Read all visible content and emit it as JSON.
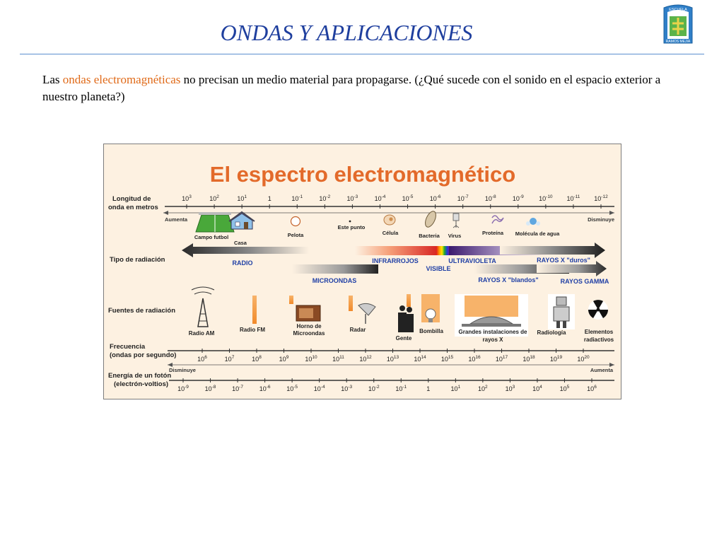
{
  "slide": {
    "title": "ONDAS Y APLICACIONES",
    "intro_before": "Las ",
    "intro_highlight": "ondas electromagnéticas",
    "intro_after": " no precisan un medio material para propagarse. (¿Qué sucede con el sonido en el espacio exterior a nuestro planeta?)",
    "highlight_color": "#e06a18",
    "title_color": "#1f3f9e",
    "logo_icon": "school-crest-icon",
    "logo_text_top": "ESCUELA",
    "logo_text_bottom": "RAMOS MEJIA"
  },
  "figure": {
    "title": "El espectro electromagnético",
    "title_color": "#e36a2a",
    "wavelength": {
      "label_line1": "Longitud de",
      "label_line2": "onda en metros",
      "left_arrow": "Aumenta",
      "right_arrow": "Disminuye",
      "ticks": [
        {
          "b": "10",
          "e": "3"
        },
        {
          "b": "10",
          "e": "2"
        },
        {
          "b": "10",
          "e": "1"
        },
        {
          "b": "1",
          "e": ""
        },
        {
          "b": "10",
          "e": "-1"
        },
        {
          "b": "10",
          "e": "-2"
        },
        {
          "b": "10",
          "e": "-3"
        },
        {
          "b": "10",
          "e": "-4"
        },
        {
          "b": "10",
          "e": "-5"
        },
        {
          "b": "10",
          "e": "-6"
        },
        {
          "b": "10",
          "e": "-7"
        },
        {
          "b": "10",
          "e": "-8"
        },
        {
          "b": "10",
          "e": "-9"
        },
        {
          "b": "10",
          "e": "-10"
        },
        {
          "b": "10",
          "e": "-11"
        },
        {
          "b": "10",
          "e": "-12"
        }
      ]
    },
    "objects": [
      "Campo futbol",
      "Casa",
      "Pelota",
      "Este punto",
      "Célula",
      "Bacteria",
      "Virus",
      "Proteína",
      "Molécula de agua"
    ],
    "radiation": {
      "label": "Tipo de radiación",
      "types": [
        "RADIO",
        "MICROONDAS",
        "INFRARROJOS",
        "VISIBLE",
        "ULTRAVIOLETA",
        "RAYOS X \"blandos\"",
        "RAYOS X \"duros\"",
        "RAYOS GAMMA"
      ]
    },
    "sources": {
      "label": "Fuentes de radiación",
      "items": [
        "Radio AM",
        "Radio FM",
        "Horno de",
        "Microondas",
        "Radar",
        "Gente",
        "Bombilla",
        "Grandes instalaciones de",
        "rayos X",
        "Radiología",
        "Elementos",
        "radiactivos"
      ]
    },
    "frequency": {
      "label_line1": "Frecuencia",
      "label_line2": "(ondas por segundo)",
      "ticks": [
        {
          "b": "10",
          "e": "6"
        },
        {
          "b": "10",
          "e": "7"
        },
        {
          "b": "10",
          "e": "8"
        },
        {
          "b": "10",
          "e": "9"
        },
        {
          "b": "10",
          "e": "10"
        },
        {
          "b": "10",
          "e": "11"
        },
        {
          "b": "10",
          "e": "12"
        },
        {
          "b": "10",
          "e": "13"
        },
        {
          "b": "10",
          "e": "14"
        },
        {
          "b": "10",
          "e": "15"
        },
        {
          "b": "10",
          "e": "16"
        },
        {
          "b": "10",
          "e": "17"
        },
        {
          "b": "10",
          "e": "18"
        },
        {
          "b": "10",
          "e": "19"
        },
        {
          "b": "10",
          "e": "20"
        }
      ]
    },
    "energy": {
      "label_line1": "Energía de un fotón",
      "label_line2": "(electrón-voltios)",
      "left_arrow": "Disminuye",
      "right_arrow": "Aumenta",
      "ticks": [
        {
          "b": "10",
          "e": "-9"
        },
        {
          "b": "10",
          "e": "-8"
        },
        {
          "b": "10",
          "e": "-7"
        },
        {
          "b": "10",
          "e": "-6"
        },
        {
          "b": "10",
          "e": "-5"
        },
        {
          "b": "10",
          "e": "-4"
        },
        {
          "b": "10",
          "e": "-3"
        },
        {
          "b": "10",
          "e": "-2"
        },
        {
          "b": "10",
          "e": "-1"
        },
        {
          "b": "1",
          "e": ""
        },
        {
          "b": "10",
          "e": "1"
        },
        {
          "b": "10",
          "e": "2"
        },
        {
          "b": "10",
          "e": "3"
        },
        {
          "b": "10",
          "e": "4"
        },
        {
          "b": "10",
          "e": "5"
        },
        {
          "b": "10",
          "e": "6"
        }
      ]
    }
  }
}
